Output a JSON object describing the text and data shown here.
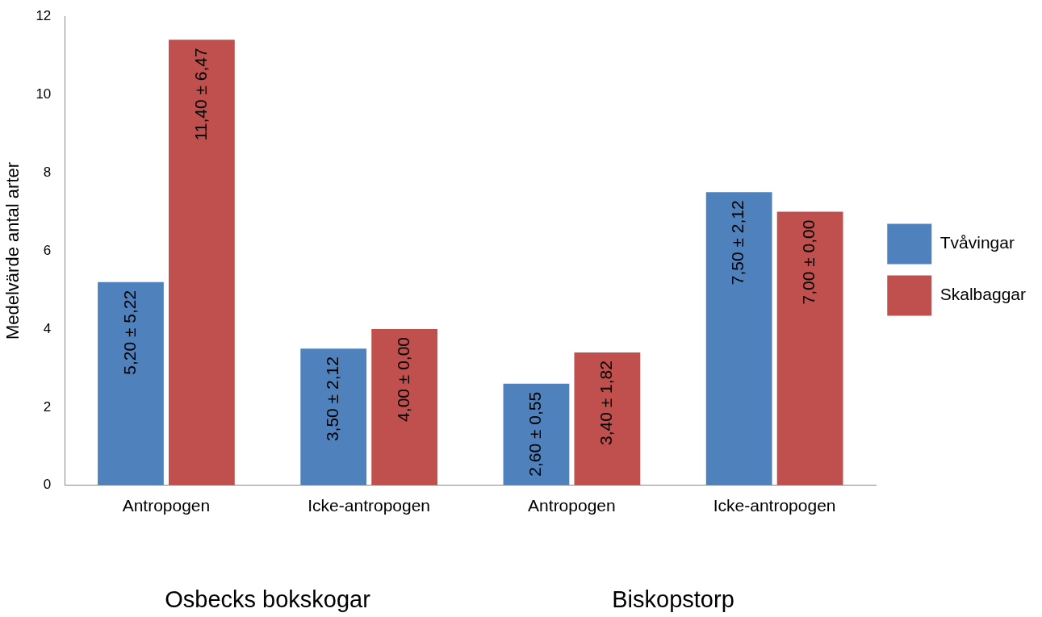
{
  "chart_data": {
    "type": "bar",
    "ylabel": "Medelvärde antal arter",
    "categories": [
      "Antropogen",
      "Icke-antropogen",
      "Antropogen",
      "Icke-antropogen"
    ],
    "series": [
      {
        "name": "Tvåvingar",
        "color": "#4f81bd",
        "values": [
          5.2,
          3.5,
          2.6,
          7.5
        ],
        "value_labels": [
          "5,20 ± 5,22",
          "3,50 ± 2,12",
          "2,60 ± 0,55",
          "7,50 ± 2,12"
        ]
      },
      {
        "name": "Skalbaggar",
        "color": "#c0504d",
        "values": [
          11.4,
          4.0,
          3.4,
          7.0
        ],
        "value_labels": [
          "11,40 ± 6,47",
          "4,00 ± 0,00",
          "3,40 ± 1,82",
          "7,00 ± 0,00"
        ]
      }
    ],
    "annotations": [
      "Osbecks bokskogar",
      "Biskopstorp"
    ],
    "ylim": [
      0,
      12
    ],
    "yticks": [
      0,
      2,
      4,
      6,
      8,
      10,
      12
    ],
    "grid": false,
    "legend": "right"
  }
}
